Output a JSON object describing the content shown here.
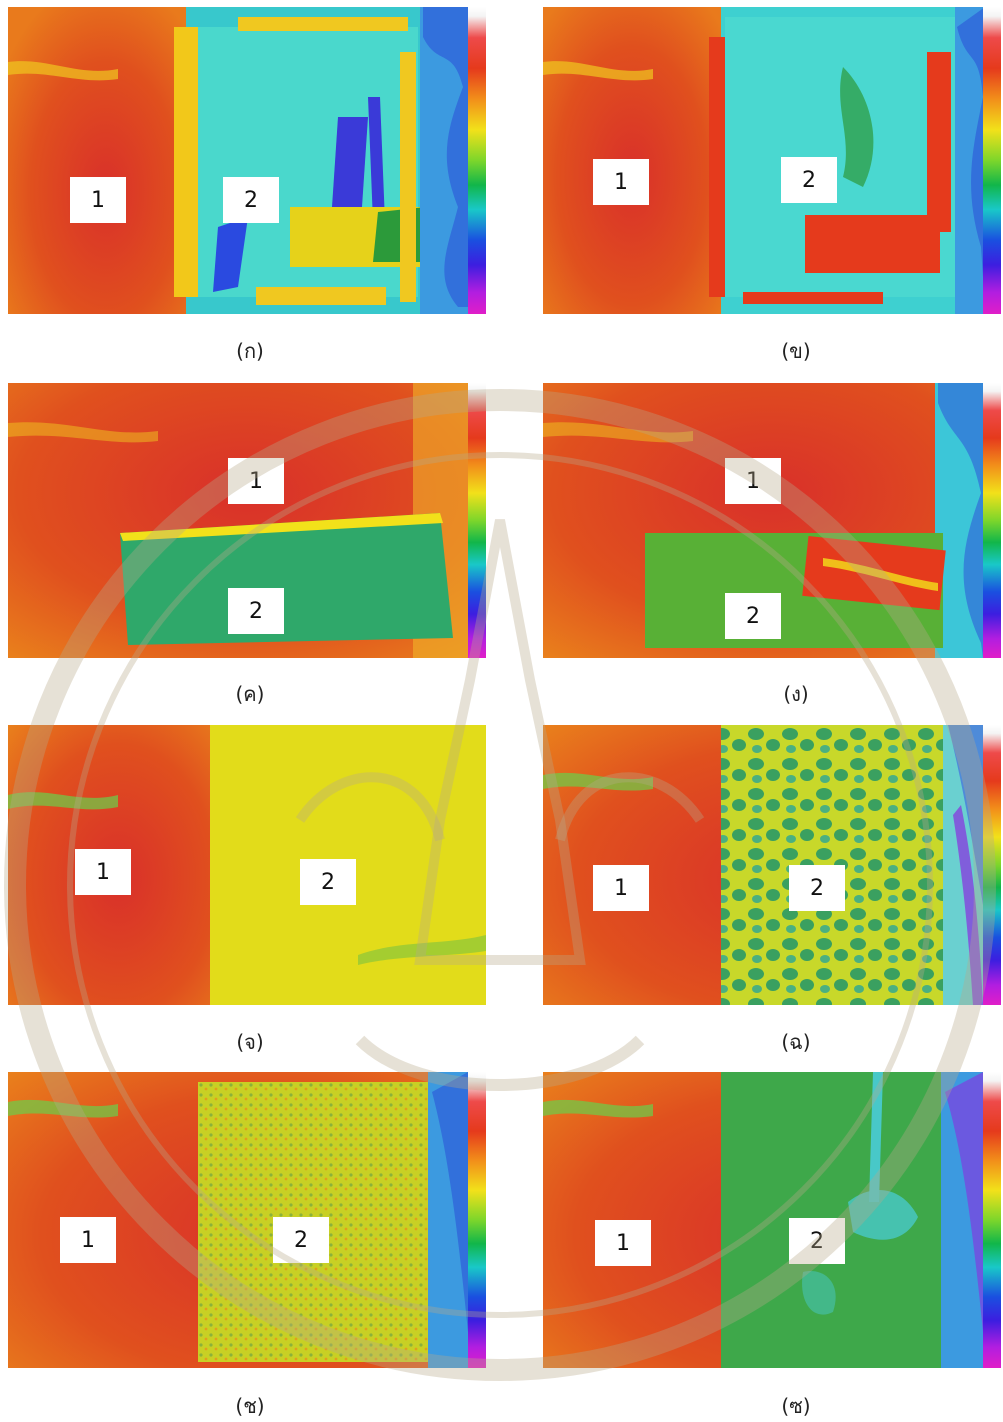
{
  "panels": [
    {
      "id": "a",
      "caption": "(ก)",
      "zone1": "1",
      "zone2": "2"
    },
    {
      "id": "b",
      "caption": "(ข)",
      "zone1": "1",
      "zone2": "2"
    },
    {
      "id": "c",
      "caption": "(ค)",
      "zone1": "1",
      "zone2": "2"
    },
    {
      "id": "d",
      "caption": "(ง)",
      "zone1": "1",
      "zone2": "2"
    },
    {
      "id": "e",
      "caption": "(จ)",
      "zone1": "1",
      "zone2": "2"
    },
    {
      "id": "f",
      "caption": "(ฉ)",
      "zone1": "1",
      "zone2": "2"
    },
    {
      "id": "g",
      "caption": "(ช)",
      "zone1": "1",
      "zone2": "2"
    },
    {
      "id": "h",
      "caption": "(ซ)",
      "zone1": "1",
      "zone2": "2"
    }
  ],
  "colors": {
    "hot": "#e0401e",
    "warm": "#f2a81a",
    "mid": "#e6e21a",
    "green": "#2fa84a",
    "cyan": "#32d6d0",
    "blue": "#3c3ce0"
  }
}
